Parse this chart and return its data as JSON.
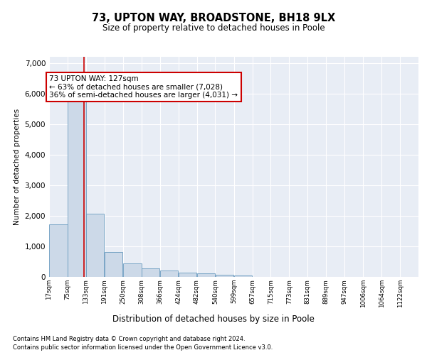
{
  "title_line1": "73, UPTON WAY, BROADSTONE, BH18 9LX",
  "title_line2": "Size of property relative to detached houses in Poole",
  "xlabel": "Distribution of detached houses by size in Poole",
  "ylabel": "Number of detached properties",
  "bar_color": "#ccd9e8",
  "bar_edge_color": "#6a9cc0",
  "property_line_color": "#cc0000",
  "property_sqm": 127,
  "annotation_text": "73 UPTON WAY: 127sqm\n← 63% of detached houses are smaller (7,028)\n36% of semi-detached houses are larger (4,031) →",
  "footnote1": "Contains HM Land Registry data © Crown copyright and database right 2024.",
  "footnote2": "Contains public sector information licensed under the Open Government Licence v3.0.",
  "bin_edges": [
    17,
    75,
    133,
    191,
    250,
    308,
    366,
    424,
    482,
    540,
    599,
    657,
    715,
    773,
    831,
    889,
    947,
    1006,
    1064,
    1122,
    1180
  ],
  "bin_counts": [
    1720,
    5820,
    2060,
    820,
    440,
    290,
    200,
    135,
    105,
    70,
    50,
    0,
    0,
    0,
    0,
    0,
    0,
    0,
    0,
    0
  ],
  "ylim": [
    0,
    7200
  ],
  "yticks": [
    0,
    1000,
    2000,
    3000,
    4000,
    5000,
    6000,
    7000
  ],
  "plot_bg_color": "#e8edf5",
  "grid_color": "#ffffff",
  "fig_bg_color": "#ffffff"
}
